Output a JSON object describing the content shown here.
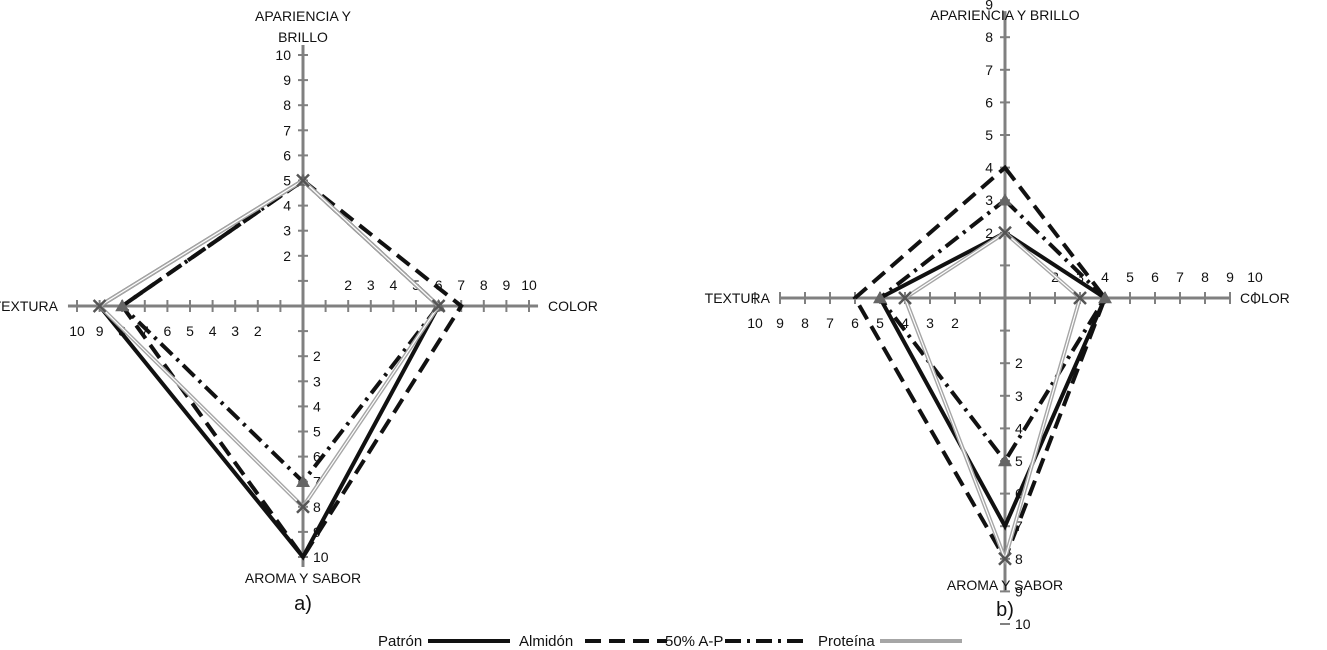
{
  "legend": [
    "Patrón",
    "Almidón",
    "50% A-P",
    "Proteína"
  ],
  "colors": {
    "axis": "#808080",
    "patron": "#111111",
    "almidon": "#111111",
    "mix": "#111111",
    "proteina": "#a6a6a6",
    "marker_triangle": "#666666",
    "marker_x": "#555555"
  },
  "chart_data": [
    {
      "type": "radar",
      "panel_label": "a)",
      "axes": [
        "APARIENCIA Y BRILLO",
        "COLOR",
        "AROMA Y SABOR",
        "TEXTURA"
      ],
      "axis_title_lines": {
        "top": [
          "APARIENCIA Y",
          "BRILLO"
        ],
        "right": [
          "COLOR"
        ],
        "bottom": [
          "AROMA Y SABOR"
        ],
        "left": [
          "TEXTURA"
        ]
      },
      "range": [
        0,
        10
      ],
      "ticks": {
        "top": [
          2,
          3,
          4,
          5,
          6,
          7,
          8,
          9,
          10
        ],
        "right": [
          2,
          3,
          4,
          5,
          6,
          7,
          8,
          9,
          10
        ],
        "bottom": [
          2,
          3,
          4,
          5,
          6,
          7,
          8,
          9,
          10
        ],
        "left": [
          2,
          3,
          4,
          5,
          6,
          7,
          8,
          9,
          10
        ]
      },
      "series": [
        {
          "name": "Patrón",
          "values": [
            5,
            6,
            10,
            9
          ],
          "style": "solid",
          "marker": "none"
        },
        {
          "name": "Almidón",
          "values": [
            5,
            7,
            10,
            8
          ],
          "style": "dash",
          "marker": "none"
        },
        {
          "name": "50% A-P",
          "values": [
            5,
            6,
            7,
            8
          ],
          "style": "dashdot",
          "marker": "triangle"
        },
        {
          "name": "Proteína",
          "values": [
            5,
            6,
            8,
            9
          ],
          "style": "solid-gray",
          "marker": "x"
        }
      ]
    },
    {
      "type": "radar",
      "panel_label": "b)",
      "axes": [
        "APARIENCIA Y BRILLO",
        "COLOR",
        "AROMA Y SABOR",
        "TEXTURA"
      ],
      "axis_title_lines": {
        "top": [
          "APARIENCIA Y BRILLO"
        ],
        "right": [
          "COLOR"
        ],
        "bottom": [
          "AROMA Y SABOR"
        ],
        "left": [
          "TEXTURA"
        ]
      },
      "range": [
        0,
        10
      ],
      "ticks": {
        "top": [
          2,
          3,
          4,
          5,
          6,
          7,
          8,
          9
        ],
        "right": [
          2,
          3,
          4,
          5,
          6,
          7,
          8,
          9,
          10
        ],
        "bottom": [
          2,
          3,
          4,
          5,
          6,
          7,
          8,
          9,
          10
        ],
        "left": [
          2,
          3,
          4,
          5,
          6,
          7,
          8,
          9,
          10
        ]
      },
      "series": [
        {
          "name": "Patrón",
          "values": [
            2,
            4,
            7,
            5
          ],
          "style": "solid",
          "marker": "none"
        },
        {
          "name": "Almidón",
          "values": [
            4,
            4,
            8,
            6
          ],
          "style": "dash",
          "marker": "none"
        },
        {
          "name": "50% A-P",
          "values": [
            3,
            4,
            5,
            5
          ],
          "style": "dashdot",
          "marker": "triangle"
        },
        {
          "name": "Proteína",
          "values": [
            2,
            3,
            8,
            4
          ],
          "style": "solid-gray",
          "marker": "x"
        }
      ]
    }
  ]
}
